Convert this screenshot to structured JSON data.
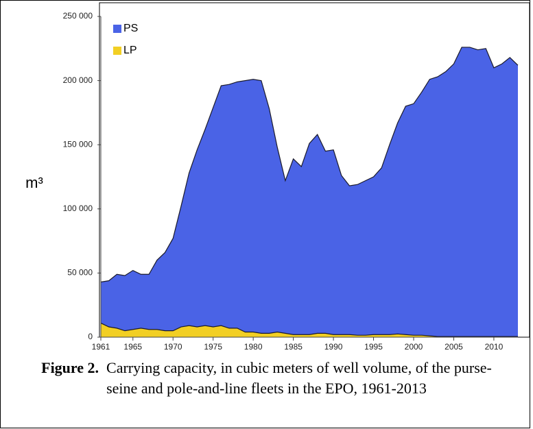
{
  "chart_data": {
    "type": "area",
    "ylabel": "m³",
    "caption": {
      "label": "Figure 2.",
      "text": "Carrying capacity, in cubic meters of well volume, of the purse-seine and pole-and-line fleets in the EPO, 1961-2013"
    },
    "x": [
      1961,
      1962,
      1963,
      1964,
      1965,
      1966,
      1967,
      1968,
      1969,
      1970,
      1971,
      1972,
      1973,
      1974,
      1975,
      1976,
      1977,
      1978,
      1979,
      1980,
      1981,
      1982,
      1983,
      1984,
      1985,
      1986,
      1987,
      1988,
      1989,
      1990,
      1991,
      1992,
      1993,
      1994,
      1995,
      1996,
      1997,
      1998,
      1999,
      2000,
      2001,
      2002,
      2003,
      2004,
      2005,
      2006,
      2007,
      2008,
      2009,
      2010,
      2011,
      2012,
      2013
    ],
    "series": [
      {
        "name": "PS",
        "color": "#4a63e6",
        "values": [
          43000,
          44000,
          49000,
          48000,
          52000,
          49000,
          49000,
          60000,
          66000,
          77000,
          102000,
          128000,
          146000,
          162000,
          179000,
          196000,
          197000,
          199000,
          200000,
          201000,
          200000,
          178000,
          148000,
          122000,
          139000,
          133000,
          151000,
          158000,
          145000,
          146000,
          126000,
          118000,
          119000,
          122000,
          125000,
          132000,
          150000,
          167000,
          180000,
          182000,
          191000,
          201000,
          203000,
          207000,
          213000,
          226000,
          226000,
          224000,
          225000,
          210000,
          213000,
          218000,
          212000
        ]
      },
      {
        "name": "LP",
        "color": "#f2cf24",
        "values": [
          11000,
          8000,
          7000,
          5000,
          6000,
          7000,
          6000,
          6000,
          5000,
          5000,
          8000,
          9000,
          8000,
          9000,
          8000,
          9000,
          7000,
          7000,
          4000,
          4000,
          3000,
          3000,
          4000,
          3000,
          2000,
          2000,
          2000,
          3000,
          3000,
          2000,
          2000,
          2000,
          1500,
          1500,
          2000,
          2000,
          2000,
          2500,
          2000,
          1500,
          1500,
          1000,
          500,
          500,
          500,
          500,
          500,
          500,
          500,
          500,
          500,
          500,
          500
        ]
      }
    ],
    "xlim": [
      1961,
      2013
    ],
    "xticks": [
      1961,
      1965,
      1970,
      1975,
      1980,
      1985,
      1990,
      1995,
      2000,
      2005,
      2010
    ],
    "ylim": [
      0,
      250000
    ],
    "yticks": [
      0,
      {
        "value": 50000,
        "label": "50 000"
      },
      {
        "value": 100000,
        "label": "100 000"
      },
      {
        "value": 150000,
        "label": "150 000"
      },
      {
        "value": 200000,
        "label": "200 000"
      },
      {
        "value": 250000,
        "label": "250 000"
      }
    ],
    "legend": "upper left",
    "grid": false
  }
}
